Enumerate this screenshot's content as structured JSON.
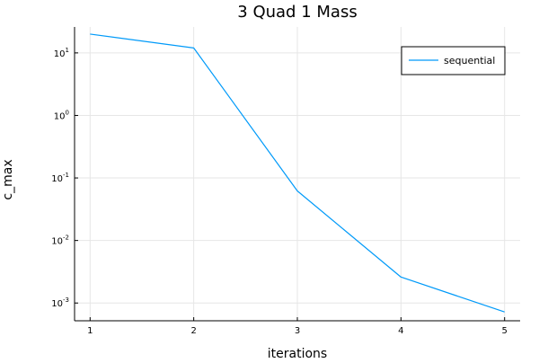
{
  "chart_data": {
    "type": "line",
    "title": "3 Quad 1 Mass",
    "xlabel": "iterations",
    "ylabel": "c_max",
    "x_scale": "linear",
    "y_scale": "log10",
    "xlim": [
      0.85,
      5.15
    ],
    "ylim": [
      0.00052,
      26
    ],
    "x_ticks": [
      1,
      2,
      3,
      4,
      5
    ],
    "x_tick_labels": [
      "1",
      "2",
      "3",
      "4",
      "5"
    ],
    "y_ticks": [
      0.001,
      0.01,
      0.1,
      1,
      10
    ],
    "y_tick_labels": [
      {
        "base": "10",
        "exp": "-3"
      },
      {
        "base": "10",
        "exp": "-2"
      },
      {
        "base": "10",
        "exp": "-1"
      },
      {
        "base": "10",
        "exp": "0"
      },
      {
        "base": "10",
        "exp": "1"
      }
    ],
    "grid": true,
    "legend": {
      "position": "top-right"
    },
    "series": [
      {
        "name": "sequential",
        "color": "#009af9",
        "x": [
          1,
          2,
          3,
          4,
          5
        ],
        "y": [
          20,
          12,
          0.062,
          0.0026,
          0.00072
        ]
      }
    ]
  }
}
